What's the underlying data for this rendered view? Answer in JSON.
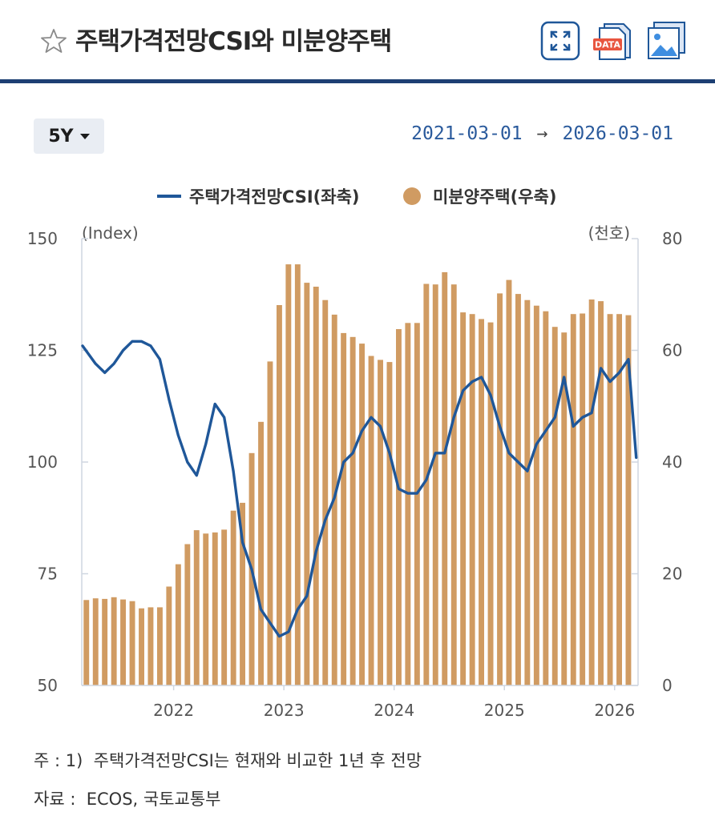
{
  "header": {
    "title": "주택가격전망CSI와 미분양주택",
    "icons": {
      "favorite": "star-outline-icon",
      "fullscreen": "fullscreen-expand-icon",
      "data": "data-file-icon",
      "image": "image-download-icon"
    }
  },
  "controls": {
    "period_label": "5Y",
    "date_start": "2021-03-01",
    "date_arrow": "→",
    "date_end": "2026-03-01"
  },
  "notes": {
    "line1": "주 : 1)  주택가격전망CSI는 현재와 비교한 1년 후 전망",
    "line2": "자료 :  ECOS, 국토교통부"
  },
  "colors": {
    "header_rule": "#1d3f73",
    "line": "#1f5799",
    "bar": "#d09b62",
    "axis_text": "#555555",
    "date_text": "#2a5a9c"
  },
  "chart_data": {
    "type": "bar+line",
    "legend": {
      "position": "top-center",
      "line_label": "주택가격전망CSI(좌축)",
      "bar_label": "미분양주택(우축)"
    },
    "left_axis": {
      "unit": "(Index)",
      "range": [
        50,
        150
      ],
      "ticks": [
        "150",
        "125",
        "100",
        "75",
        "50"
      ]
    },
    "right_axis": {
      "unit": "(천호)",
      "range": [
        0,
        80
      ],
      "ticks": [
        "80",
        "60",
        "40",
        "20",
        "0"
      ]
    },
    "x_axis": {
      "ticks": [
        "2022",
        "2023",
        "2024",
        "2025",
        "2026"
      ]
    },
    "grid": "horizontal-ticks-only",
    "months": [
      "2021-03",
      "2021-04",
      "2021-05",
      "2021-06",
      "2021-07",
      "2021-08",
      "2021-09",
      "2021-10",
      "2021-11",
      "2021-12",
      "2022-01",
      "2022-02",
      "2022-03",
      "2022-04",
      "2022-05",
      "2022-06",
      "2022-07",
      "2022-08",
      "2022-09",
      "2022-10",
      "2022-11",
      "2022-12",
      "2023-01",
      "2023-02",
      "2023-03",
      "2023-04",
      "2023-05",
      "2023-06",
      "2023-07",
      "2023-08",
      "2023-09",
      "2023-10",
      "2023-11",
      "2023-12",
      "2024-01",
      "2024-02",
      "2024-03",
      "2024-04",
      "2024-05",
      "2024-06",
      "2024-07",
      "2024-08",
      "2024-09",
      "2024-10",
      "2024-11",
      "2024-12",
      "2025-01",
      "2025-02",
      "2025-03",
      "2025-04",
      "2025-05",
      "2025-06",
      "2025-07",
      "2025-08",
      "2025-09",
      "2025-10",
      "2025-11",
      "2025-12",
      "2026-01",
      "2026-02"
    ],
    "series": [
      {
        "name": "미분양주택(우축)",
        "kind": "bar",
        "axis": "right",
        "values": [
          15.3,
          15.6,
          15.5,
          15.8,
          15.4,
          15.1,
          13.8,
          14.0,
          14.0,
          17.7,
          21.7,
          25.3,
          27.8,
          27.2,
          27.4,
          27.9,
          31.3,
          32.7,
          41.6,
          47.2,
          58.0,
          68.1,
          75.4,
          75.4,
          72.1,
          71.4,
          69.0,
          66.4,
          63.1,
          62.4,
          61.2,
          59.0,
          58.3,
          57.9,
          63.8,
          64.9,
          64.9,
          71.9,
          71.8,
          74.0,
          71.8,
          66.8,
          66.5,
          65.6,
          65.0,
          70.2,
          72.6,
          70.1,
          69.0,
          68.0,
          67.0,
          64.2,
          63.2,
          66.5,
          66.6,
          69.1,
          68.8,
          66.5,
          66.5,
          66.3
        ]
      },
      {
        "name": "주택가격전망CSI(좌축)",
        "kind": "line",
        "axis": "left",
        "values": [
          126,
          122,
          120,
          122,
          125,
          127,
          127,
          126,
          123,
          114,
          106,
          100,
          97,
          104,
          113,
          110,
          98,
          82,
          76,
          67,
          64,
          61,
          62,
          67,
          70,
          80,
          87,
          92,
          100,
          102,
          107,
          110,
          108,
          102,
          94,
          93,
          93,
          96,
          102,
          102,
          110,
          116,
          118,
          119,
          115,
          108,
          102,
          100,
          98,
          104,
          107,
          110,
          119,
          108,
          110,
          111,
          121,
          118,
          120,
          123
        ]
      }
    ],
    "line_extra_last": {
      "month": "2026-03",
      "value": 101
    }
  }
}
